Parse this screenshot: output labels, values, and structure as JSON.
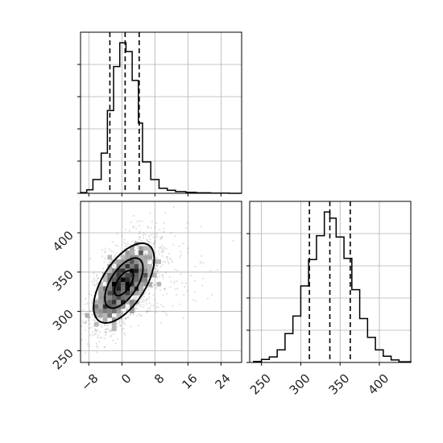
{
  "chart_data": {
    "type": "corner",
    "panels": [
      {
        "panel": "marginal-x",
        "type": "histogram",
        "xlim": [
          -10,
          29
        ],
        "xticks": [
          -8,
          0,
          8,
          16,
          24
        ],
        "xtick_labels_shown": false,
        "ytick_labels_shown": false,
        "bins": [
          {
            "x0": -10.0,
            "x1": -8.5,
            "count": 3
          },
          {
            "x0": -8.5,
            "x1": -7.0,
            "count": 14
          },
          {
            "x0": -7.0,
            "x1": -5.0,
            "count": 55
          },
          {
            "x0": -5.0,
            "x1": -3.5,
            "count": 160
          },
          {
            "x0": -3.5,
            "x1": -2.0,
            "count": 330
          },
          {
            "x0": -2.0,
            "x1": -0.5,
            "count": 505
          },
          {
            "x0": -0.5,
            "x1": 1.0,
            "count": 600
          },
          {
            "x0": 1.0,
            "x1": 2.5,
            "count": 565
          },
          {
            "x0": 2.5,
            "x1": 4.0,
            "count": 450
          },
          {
            "x0": 4.0,
            "x1": 5.0,
            "count": 280
          },
          {
            "x0": 5.0,
            "x1": 7.0,
            "count": 125
          },
          {
            "x0": 7.0,
            "x1": 9.0,
            "count": 55
          },
          {
            "x0": 9.0,
            "x1": 11.0,
            "count": 20
          },
          {
            "x0": 11.0,
            "x1": 13.0,
            "count": 12
          },
          {
            "x0": 13.0,
            "x1": 15.5,
            "count": 7
          },
          {
            "x0": 15.5,
            "x1": 18.0,
            "count": 4
          },
          {
            "x0": 18.0,
            "x1": 21.5,
            "count": 2
          },
          {
            "x0": 21.5,
            "x1": 26.0,
            "count": 1
          },
          {
            "x0": 26.0,
            "x1": 29.0,
            "count": 0
          }
        ],
        "quantiles": [
          -2.9,
          0.8,
          4.2
        ]
      },
      {
        "panel": "joint",
        "type": "scatter-density",
        "xlim": [
          -10,
          29
        ],
        "ylim": [
          235,
          440
        ],
        "xticks": [
          -8,
          0,
          8,
          16,
          24
        ],
        "xtick_labels": [
          "−8",
          "0",
          "8",
          "16",
          "24"
        ],
        "yticks": [
          250,
          300,
          350,
          400
        ],
        "ytick_labels": [
          "250",
          "300",
          "350",
          "400"
        ],
        "center": [
          0.5,
          336
        ],
        "std": [
          4.0,
          29.0
        ],
        "correlation": 0.6,
        "n_points": 2000,
        "contour_levels": [
          "inner",
          "middle",
          "outer"
        ]
      },
      {
        "panel": "marginal-y",
        "type": "histogram",
        "xlim": [
          235,
          440
        ],
        "xticks": [
          250,
          300,
          350,
          400
        ],
        "xtick_labels": [
          "250",
          "300",
          "350",
          "400"
        ],
        "ytick_labels_shown": false,
        "bins": [
          {
            "x0": 240,
            "x1": 250,
            "count": 4
          },
          {
            "x0": 250,
            "x1": 260,
            "count": 12
          },
          {
            "x0": 260,
            "x1": 270,
            "count": 22
          },
          {
            "x0": 270,
            "x1": 280,
            "count": 50
          },
          {
            "x0": 280,
            "x1": 290,
            "count": 115
          },
          {
            "x0": 290,
            "x1": 300,
            "count": 185
          },
          {
            "x0": 300,
            "x1": 310,
            "count": 305
          },
          {
            "x0": 310,
            "x1": 320,
            "count": 410
          },
          {
            "x0": 320,
            "x1": 330,
            "count": 505
          },
          {
            "x0": 330,
            "x1": 337,
            "count": 600
          },
          {
            "x0": 337,
            "x1": 345,
            "count": 575
          },
          {
            "x0": 345,
            "x1": 355,
            "count": 500
          },
          {
            "x0": 355,
            "x1": 365,
            "count": 415
          },
          {
            "x0": 365,
            "x1": 375,
            "count": 290
          },
          {
            "x0": 375,
            "x1": 385,
            "count": 175
          },
          {
            "x0": 385,
            "x1": 395,
            "count": 100
          },
          {
            "x0": 395,
            "x1": 405,
            "count": 50
          },
          {
            "x0": 405,
            "x1": 415,
            "count": 25
          },
          {
            "x0": 415,
            "x1": 425,
            "count": 10
          },
          {
            "x0": 425,
            "x1": 440,
            "count": 3
          }
        ],
        "quantiles": [
          311,
          337,
          363
        ]
      }
    ]
  }
}
